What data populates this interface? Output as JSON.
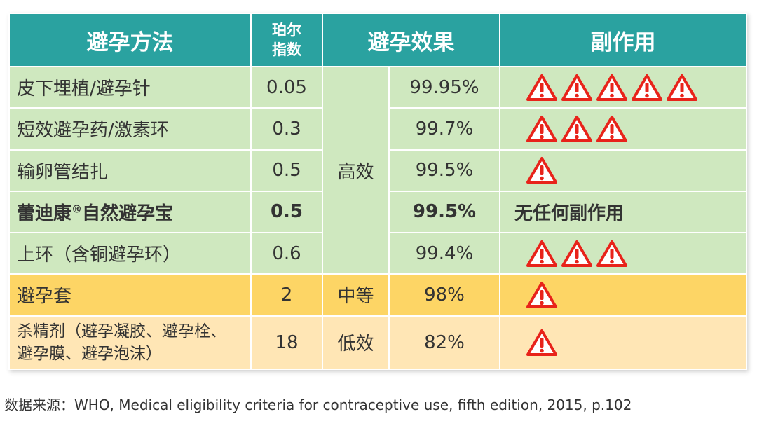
{
  "headers": {
    "method": "避孕方法",
    "pearl_line1": "珀尔",
    "pearl_line2": "指数",
    "effect": "避孕效果",
    "side_effects": "副作用"
  },
  "groups": {
    "high": "高效",
    "medium": "中等",
    "low": "低效"
  },
  "rows": [
    {
      "method": "皮下埋植/避孕针",
      "pearl_index": "0.05",
      "effectiveness": "99.95%",
      "warning_count": 5,
      "side_text": ""
    },
    {
      "method": "短效避孕药/激素环",
      "pearl_index": "0.3",
      "effectiveness": "99.7%",
      "warning_count": 3,
      "side_text": ""
    },
    {
      "method": "输卵管结扎",
      "pearl_index": "0.5",
      "effectiveness": "99.5%",
      "warning_count": 1,
      "side_text": ""
    },
    {
      "method": "蕾迪康",
      "method_sup": "®",
      "method_suffix": "自然避孕宝",
      "pearl_index": "0.5",
      "effectiveness": "99.5%",
      "warning_count": 0,
      "side_text": "无任何副作用"
    },
    {
      "method": "上环（含铜避孕环）",
      "pearl_index": "0.6",
      "effectiveness": "99.4%",
      "warning_count": 3,
      "side_text": ""
    },
    {
      "method": "避孕套",
      "pearl_index": "2",
      "effectiveness": "98%",
      "warning_count": 1,
      "side_text": ""
    },
    {
      "method_line1": "杀精剂（避孕凝胶、避孕栓、",
      "method_line2": "避孕膜、避孕泡沫）",
      "pearl_index": "18",
      "effectiveness": "82%",
      "warning_count": 1,
      "side_text": ""
    }
  ],
  "source": "数据来源：WHO, Medical eligibility criteria for contraceptive use, fifth edition, 2015, p.102",
  "colors": {
    "header": "#2aa2a0",
    "high_row": "#cfe8bf",
    "medium_row": "#fdd565",
    "low_row": "#ffe6b5",
    "highlight_text": "#22a5b3",
    "warning": "#e8231a"
  },
  "icons": {
    "warning": "warning-triangle-icon"
  }
}
